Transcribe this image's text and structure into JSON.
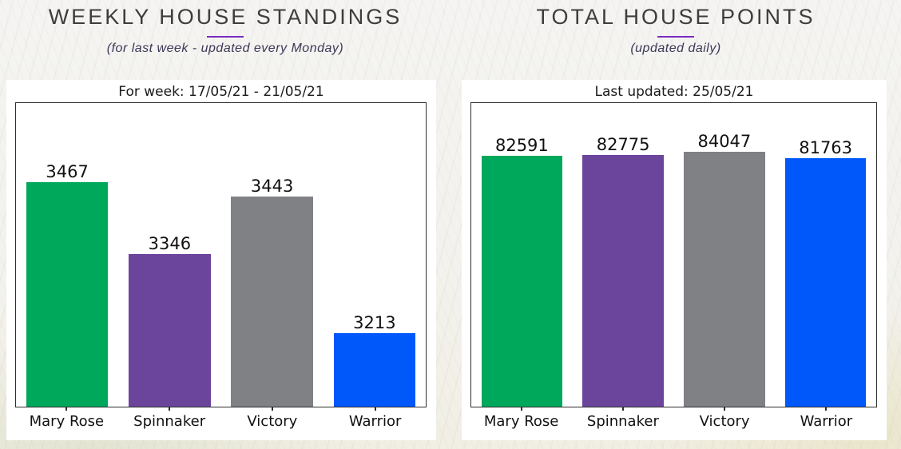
{
  "sections": [
    {
      "heading": "WEEKLY HOUSE STANDINGS",
      "subtitle": "(for last week - updated every Monday)"
    },
    {
      "heading": "TOTAL HOUSE POINTS",
      "subtitle": "(updated daily)"
    }
  ],
  "chart_data": [
    {
      "type": "bar",
      "title": "For week: 17/05/21 - 21/05/21",
      "categories": [
        "Mary Rose",
        "Spinnaker",
        "Victory",
        "Warrior"
      ],
      "values": [
        3467,
        3346,
        3443,
        3213
      ],
      "bar_colors": [
        "#00a85c",
        "#6b449b",
        "#7f8185",
        "#0058fb"
      ],
      "value_labels": true,
      "xlabel": "",
      "ylabel": "",
      "ylim": [
        3090,
        3600
      ],
      "grid": false,
      "legend": "none",
      "y_axis_ticks": "hidden"
    },
    {
      "type": "bar",
      "title": "Last updated: 25/05/21",
      "categories": [
        "Mary Rose",
        "Spinnaker",
        "Victory",
        "Warrior"
      ],
      "values": [
        82591,
        82775,
        84047,
        81763
      ],
      "bar_colors": [
        "#00a85c",
        "#6b449b",
        "#7f8185",
        "#0058fb"
      ],
      "value_labels": true,
      "xlabel": "",
      "ylabel": "",
      "ylim": [
        0,
        100000
      ],
      "grid": false,
      "legend": "none",
      "y_axis_ticks": "hidden"
    }
  ],
  "colors": {
    "heading_text": "#3d3d3d",
    "subtitle_text": "#3c3857",
    "accent_underline": "#7a2bbf",
    "house_mary_rose": "#00a85c",
    "house_spinnaker": "#6b449b",
    "house_victory": "#7f8185",
    "house_warrior": "#0058fb",
    "card_background": "#ffffff",
    "axis": "#2e2e2e"
  }
}
